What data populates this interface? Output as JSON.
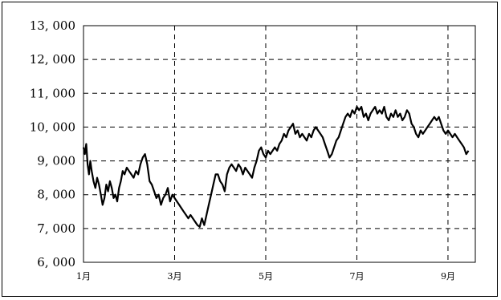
{
  "chart_data": {
    "type": "line",
    "title": "",
    "xlabel": "",
    "ylabel": "",
    "ylim": [
      6000,
      13000
    ],
    "xlim": [
      1,
      9.6
    ],
    "y_ticks": [
      6000,
      7000,
      8000,
      9000,
      10000,
      11000,
      12000,
      13000
    ],
    "y_tick_labels": [
      "6, 000",
      "7, 000",
      "8, 000",
      "9, 000",
      "10, 000",
      "11, 000",
      "12, 000",
      "13, 000"
    ],
    "x_ticks": [
      1,
      3,
      5,
      7,
      9
    ],
    "x_tick_labels": [
      "1月",
      "3月",
      "5月",
      "7月",
      "9月"
    ],
    "grid": true,
    "grid_style": "dashed",
    "line_color": "#000000",
    "series": [
      {
        "x": [
          1.0,
          1.03,
          1.06,
          1.09,
          1.12,
          1.15,
          1.18,
          1.22,
          1.26,
          1.3,
          1.34,
          1.38,
          1.42,
          1.46,
          1.5,
          1.54,
          1.58,
          1.62,
          1.66,
          1.7,
          1.74,
          1.78,
          1.82,
          1.86,
          1.9,
          1.95,
          2.0,
          2.05,
          2.1,
          2.15,
          2.2,
          2.25,
          2.3,
          2.35,
          2.4,
          2.45,
          2.5,
          2.55,
          2.6,
          2.65,
          2.7,
          2.75,
          2.8,
          2.85,
          2.9,
          2.95,
          3.0,
          3.05,
          3.1,
          3.15,
          3.2,
          3.25,
          3.3,
          3.35,
          3.4,
          3.45,
          3.5,
          3.55,
          3.6,
          3.65,
          3.7,
          3.75,
          3.8,
          3.85,
          3.9,
          3.95,
          4.0,
          4.05,
          4.1,
          4.15,
          4.2,
          4.25,
          4.3,
          4.35,
          4.4,
          4.45,
          4.5,
          4.55,
          4.6,
          4.65,
          4.7,
          4.75,
          4.8,
          4.85,
          4.9,
          4.95,
          5.0,
          5.05,
          5.1,
          5.15,
          5.2,
          5.25,
          5.3,
          5.35,
          5.4,
          5.45,
          5.5,
          5.55,
          5.6,
          5.65,
          5.7,
          5.75,
          5.8,
          5.85,
          5.9,
          5.95,
          6.0,
          6.05,
          6.1,
          6.15,
          6.2,
          6.25,
          6.3,
          6.35,
          6.4,
          6.45,
          6.5,
          6.55,
          6.6,
          6.65,
          6.7,
          6.75,
          6.8,
          6.85,
          6.9,
          6.95,
          7.0,
          7.05,
          7.1,
          7.15,
          7.2,
          7.25,
          7.3,
          7.35,
          7.4,
          7.45,
          7.5,
          7.55,
          7.6,
          7.65,
          7.7,
          7.75,
          7.8,
          7.85,
          7.9,
          7.95,
          8.0,
          8.05,
          8.1,
          8.15,
          8.2,
          8.25,
          8.3,
          8.35,
          8.4,
          8.45,
          8.5,
          8.55,
          8.6,
          8.65,
          8.7,
          8.75,
          8.8,
          8.85,
          8.9,
          8.95,
          9.0,
          9.05,
          9.1,
          9.15,
          9.2,
          9.25,
          9.3,
          9.35,
          9.4,
          9.45
        ],
        "y": [
          9400,
          9200,
          9500,
          8900,
          8600,
          9000,
          8700,
          8400,
          8200,
          8500,
          8300,
          8000,
          7700,
          7900,
          8300,
          8100,
          8400,
          8200,
          7900,
          8000,
          7800,
          8200,
          8400,
          8700,
          8600,
          8800,
          8700,
          8600,
          8500,
          8700,
          8600,
          8900,
          9100,
          9200,
          8900,
          8400,
          8300,
          8100,
          7900,
          8000,
          7700,
          7900,
          8000,
          8200,
          7800,
          8000,
          7900,
          7800,
          7700,
          7600,
          7500,
          7400,
          7300,
          7400,
          7300,
          7200,
          7100,
          7050,
          7300,
          7100,
          7400,
          7700,
          8000,
          8300,
          8600,
          8600,
          8400,
          8300,
          8100,
          8600,
          8800,
          8900,
          8800,
          8700,
          8900,
          8800,
          8600,
          8800,
          8700,
          8600,
          8500,
          8800,
          9000,
          9300,
          9400,
          9200,
          9100,
          9300,
          9200,
          9300,
          9400,
          9300,
          9500,
          9600,
          9800,
          9700,
          9900,
          10000,
          10100,
          9800,
          9900,
          9700,
          9800,
          9700,
          9600,
          9800,
          9700,
          9900,
          10000,
          9900,
          9800,
          9700,
          9500,
          9300,
          9100,
          9200,
          9400,
          9600,
          9700,
          9900,
          10100,
          10300,
          10400,
          10300,
          10500,
          10400,
          10600,
          10500,
          10600,
          10300,
          10400,
          10200,
          10400,
          10500,
          10600,
          10400,
          10500,
          10400,
          10600,
          10300,
          10200,
          10400,
          10300,
          10500,
          10300,
          10400,
          10200,
          10300,
          10500,
          10400,
          10100,
          10000,
          9800,
          9700,
          9900,
          9800,
          9900,
          10000,
          10100,
          10200,
          10300,
          10200,
          10300,
          10100,
          9900,
          9800,
          9900,
          9800,
          9700,
          9800,
          9700,
          9600,
          9500,
          9400,
          9200,
          9300
        ]
      }
    ]
  }
}
